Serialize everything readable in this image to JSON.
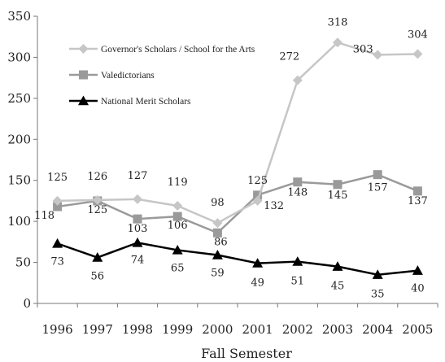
{
  "chart_data": {
    "type": "line",
    "categories": [
      "1996",
      "1997",
      "1998",
      "1999",
      "2000",
      "2001",
      "2002",
      "2003",
      "2004",
      "2005"
    ],
    "xlabel": "Fall Semester",
    "ylabel": "",
    "ylim": [
      0,
      350
    ],
    "yticks": [
      0,
      50,
      100,
      150,
      200,
      250,
      300,
      350
    ],
    "grid": false,
    "legend_position": "top-left",
    "series": [
      {
        "name": "Governor's Scholars / School for the Arts",
        "values": [
          125,
          126,
          127,
          119,
          98,
          125,
          272,
          318,
          303,
          304
        ],
        "color": "#c6c6c6",
        "marker": "diamond"
      },
      {
        "name": "Valedictorians",
        "values": [
          118,
          125,
          103,
          106,
          86,
          132,
          148,
          145,
          157,
          137
        ],
        "color": "#9a9a9a",
        "marker": "square"
      },
      {
        "name": "National Merit Scholars",
        "values": [
          73,
          56,
          74,
          65,
          59,
          49,
          51,
          45,
          35,
          40
        ],
        "color": "#000000",
        "marker": "triangle"
      }
    ]
  }
}
